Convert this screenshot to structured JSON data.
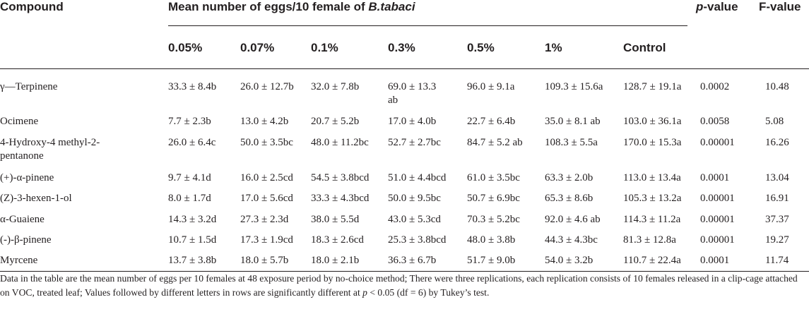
{
  "header": {
    "compound": "Compound",
    "mean_prefix": "Mean number of eggs/10 female of ",
    "species": "B.tabaci",
    "p_letter": "p",
    "p_suffix": "-value",
    "f_value": "F-value"
  },
  "concentrations": [
    "0.05%",
    "0.07%",
    "0.1%",
    "0.3%",
    "0.5%",
    "1%",
    "Control"
  ],
  "rows": [
    {
      "compound": "γ—Terpinene",
      "values": [
        "33.3 ± 8.4b",
        "26.0 ± 12.7b",
        "32.0 ± 7.8b",
        "69.0 ± 13.3 ab",
        "96.0 ± 9.1a",
        "109.3 ± 15.6a",
        "128.7 ± 19.1a"
      ],
      "p": "0.0002",
      "f": "10.48"
    },
    {
      "compound": "Ocimene",
      "values": [
        "7.7 ± 2.3b",
        "13.0 ± 4.2b",
        "20.7 ± 5.2b",
        "17.0 ± 4.0b",
        "22.7 ± 6.4b",
        "35.0 ± 8.1 ab",
        "103.0 ± 36.1a"
      ],
      "p": "0.0058",
      "f": "5.08"
    },
    {
      "compound": "4-Hydroxy-4 methyl-2-pentanone",
      "values": [
        "26.0 ± 6.4c",
        "50.0 ± 3.5bc",
        "48.0 ± 11.2bc",
        "52.7 ± 2.7bc",
        "84.7 ± 5.2 ab",
        "108.3 ± 5.5a",
        "170.0 ± 15.3a"
      ],
      "p": "0.00001",
      "f": "16.26"
    },
    {
      "compound": "(+)-α-pinene",
      "values": [
        "9.7 ± 4.1d",
        "16.0 ± 2.5cd",
        "54.5 ± 3.8bcd",
        "51.0 ± 4.4bcd",
        "61.0 ± 3.5bc",
        "63.3 ± 2.0b",
        "113.0 ± 13.4a"
      ],
      "p": "0.0001",
      "f": "13.04"
    },
    {
      "compound": "(Z)-3-hexen-1-ol",
      "values": [
        "8.0 ± 1.7d",
        "17.0 ± 5.6cd",
        "33.3 ± 4.3bcd",
        "50.0 ± 9.5bc",
        "50.7 ± 6.9bc",
        "65.3 ± 8.6b",
        "105.3 ± 13.2a"
      ],
      "p": "0.00001",
      "f": "16.91"
    },
    {
      "compound": "α-Guaiene",
      "values": [
        "14.3 ± 3.2d",
        "27.3 ± 2.3d",
        "38.0 ± 5.5d",
        "43.0 ± 5.3cd",
        "70.3 ± 5.2bc",
        "92.0 ± 4.6 ab",
        "114.3 ± 11.2a"
      ],
      "p": "0.00001",
      "f": "37.37"
    },
    {
      "compound": "(-)-β-pinene",
      "values": [
        "10.7 ± 1.5d",
        "17.3 ± 1.9cd",
        "18.3 ± 2.6cd",
        "25.3 ± 3.8bcd",
        "48.0 ± 3.8b",
        "44.3 ± 4.3bc",
        "81.3 ± 12.8a"
      ],
      "p": "0.00001",
      "f": "19.27"
    },
    {
      "compound": "Myrcene",
      "values": [
        "13.7 ± 3.8b",
        "18.0 ± 5.7b",
        "18.0 ± 2.1b",
        "36.3 ± 6.7b",
        "51.7 ± 9.0b",
        "54.0 ± 3.2b",
        "110.7 ± 22.4a"
      ],
      "p": "0.0001",
      "f": "11.74"
    }
  ],
  "footnote": {
    "part1": "Data in the table are the mean number of eggs per 10 females at 48 exposure period by no-choice method; There were three replications, each replication consists of 10 females released in a clip-cage attached on VOC, treated leaf; Values followed by different letters in rows are significantly different at ",
    "p_letter": "p",
    "part2": " < 0.05 (df = 6) by Tukey’s test."
  }
}
